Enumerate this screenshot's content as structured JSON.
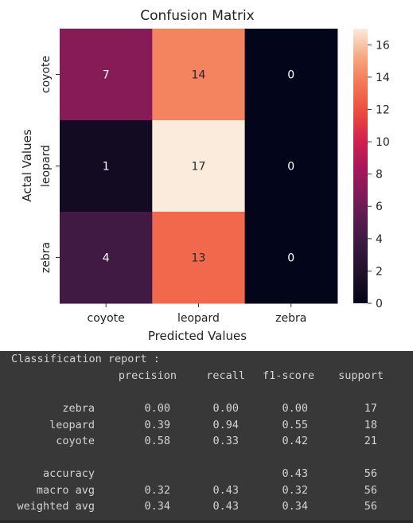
{
  "chart_data": {
    "type": "heatmap",
    "title": "Confusion Matrix",
    "xlabel": "Predicted Values",
    "ylabel": "Actal Values",
    "x_categories": [
      "coyote",
      "leopard",
      "zebra"
    ],
    "y_categories": [
      "coyote",
      "leopard",
      "zebra"
    ],
    "values": [
      [
        7,
        14,
        0
      ],
      [
        1,
        17,
        0
      ],
      [
        4,
        13,
        0
      ]
    ],
    "colorbar": {
      "min": 0,
      "max": 17,
      "ticks": [
        0,
        2,
        4,
        6,
        8,
        10,
        12,
        14,
        16
      ],
      "colormap": "rocket"
    }
  },
  "report": {
    "title": "Classification report :",
    "headers": [
      "precision",
      "recall",
      "f1-score",
      "support"
    ],
    "rows": [
      {
        "label": "zebra",
        "precision": "0.00",
        "recall": "0.00",
        "f1": "0.00",
        "support": "17"
      },
      {
        "label": "leopard",
        "precision": "0.39",
        "recall": "0.94",
        "f1": "0.55",
        "support": "18"
      },
      {
        "label": "coyote",
        "precision": "0.58",
        "recall": "0.33",
        "f1": "0.42",
        "support": "21"
      }
    ],
    "summary": [
      {
        "label": "accuracy",
        "precision": "",
        "recall": "",
        "f1": "0.43",
        "support": "56"
      },
      {
        "label": "macro avg",
        "precision": "0.32",
        "recall": "0.43",
        "f1": "0.32",
        "support": "56"
      },
      {
        "label": "weighted avg",
        "precision": "0.34",
        "recall": "0.43",
        "f1": "0.34",
        "support": "56"
      }
    ]
  }
}
